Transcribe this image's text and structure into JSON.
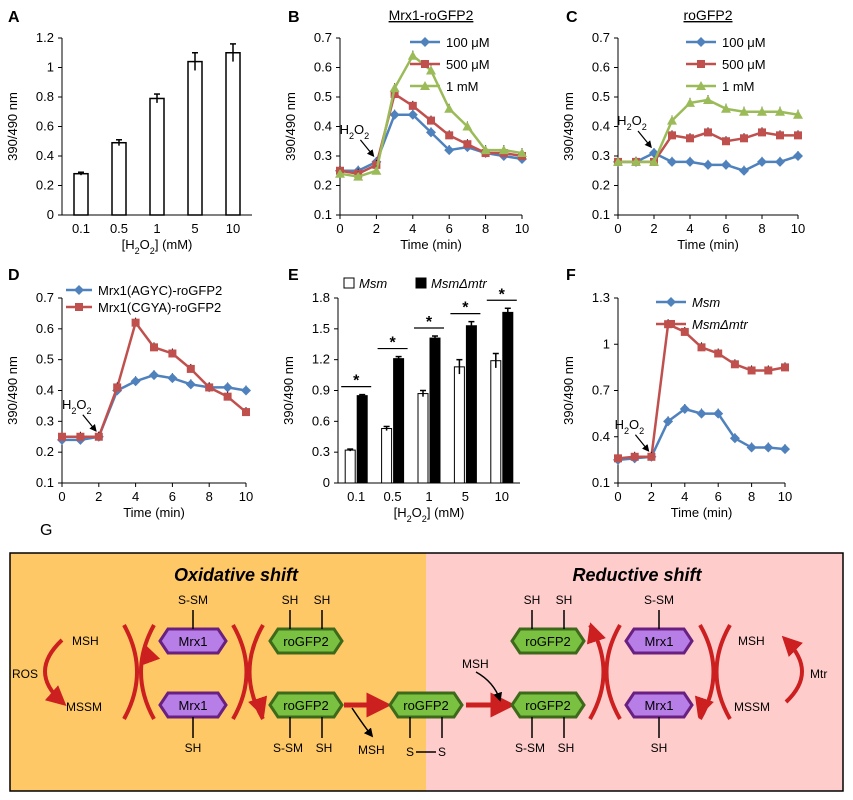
{
  "chart_data": [
    {
      "panel": "A",
      "type": "bar",
      "title": "",
      "xlabel": "[H2O2] (mM)",
      "ylabel": "390/490 nm",
      "categories": [
        "0.1",
        "0.5",
        "1",
        "5",
        "10"
      ],
      "values": [
        0.28,
        0.49,
        0.79,
        1.04,
        1.1
      ],
      "errors": [
        0.01,
        0.02,
        0.03,
        0.06,
        0.06
      ],
      "ylim": [
        0,
        1.2
      ],
      "yticks": [
        "0",
        "0.2",
        "0.4",
        "0.6",
        "0.8",
        "1",
        "1.2"
      ],
      "color": "#ffffff"
    },
    {
      "panel": "B",
      "type": "line",
      "title": "Mrx1-roGFP2",
      "xlabel": "Time (min)",
      "ylabel": "390/490 nm",
      "x": [
        0,
        1,
        2,
        3,
        4,
        5,
        6,
        7,
        8,
        9,
        10
      ],
      "xlim": [
        0,
        10
      ],
      "ylim": [
        0.1,
        0.7
      ],
      "xticks": [
        "0",
        "2",
        "4",
        "6",
        "8",
        "10"
      ],
      "yticks": [
        "0.1",
        "0.2",
        "0.3",
        "0.4",
        "0.5",
        "0.6",
        "0.7"
      ],
      "legend_position": "top-right",
      "annotation": "H2O2",
      "series": [
        {
          "name": "100 μM",
          "color": "#4f81bd",
          "marker": "diamond",
          "values": [
            0.25,
            0.25,
            0.28,
            0.44,
            0.44,
            0.38,
            0.32,
            0.33,
            0.31,
            0.3,
            0.29
          ]
        },
        {
          "name": "500 μM",
          "color": "#c0504d",
          "marker": "square",
          "values": [
            0.25,
            0.24,
            0.27,
            0.51,
            0.47,
            0.42,
            0.37,
            0.34,
            0.31,
            0.31,
            0.3
          ]
        },
        {
          "name": "1 mM",
          "color": "#9bbb59",
          "marker": "triangle",
          "values": [
            0.24,
            0.23,
            0.25,
            0.53,
            0.64,
            0.59,
            0.46,
            0.4,
            0.32,
            0.32,
            0.31
          ]
        }
      ]
    },
    {
      "panel": "C",
      "type": "line",
      "title": "roGFP2",
      "xlabel": "Time (min)",
      "ylabel": "390/490 nm",
      "x": [
        0,
        1,
        2,
        3,
        4,
        5,
        6,
        7,
        8,
        9,
        10
      ],
      "xlim": [
        0,
        10
      ],
      "ylim": [
        0.1,
        0.7
      ],
      "xticks": [
        "0",
        "2",
        "4",
        "6",
        "8",
        "10"
      ],
      "yticks": [
        "0.1",
        "0.2",
        "0.3",
        "0.4",
        "0.5",
        "0.6",
        "0.7"
      ],
      "legend_position": "top-right",
      "annotation": "H2O2",
      "series": [
        {
          "name": "100 μM",
          "color": "#4f81bd",
          "marker": "diamond",
          "values": [
            0.28,
            0.28,
            0.31,
            0.28,
            0.28,
            0.27,
            0.27,
            0.25,
            0.28,
            0.28,
            0.3
          ]
        },
        {
          "name": "500 μM",
          "color": "#c0504d",
          "marker": "square",
          "values": [
            0.28,
            0.28,
            0.28,
            0.37,
            0.36,
            0.38,
            0.35,
            0.36,
            0.38,
            0.37,
            0.37
          ]
        },
        {
          "name": "1 mM",
          "color": "#9bbb59",
          "marker": "triangle",
          "values": [
            0.28,
            0.28,
            0.28,
            0.42,
            0.48,
            0.49,
            0.46,
            0.45,
            0.45,
            0.45,
            0.44
          ]
        }
      ]
    },
    {
      "panel": "D",
      "type": "line",
      "title": "",
      "xlabel": "Time (min)",
      "ylabel": "390/490 nm",
      "x": [
        0,
        1,
        2,
        3,
        4,
        5,
        6,
        7,
        8,
        9,
        10
      ],
      "xlim": [
        0,
        10
      ],
      "ylim": [
        0.1,
        0.7
      ],
      "xticks": [
        "0",
        "2",
        "4",
        "6",
        "8",
        "10"
      ],
      "yticks": [
        "0.1",
        "0.2",
        "0.3",
        "0.4",
        "0.5",
        "0.6",
        "0.7"
      ],
      "legend_position": "top",
      "annotation": "H2O2",
      "series": [
        {
          "name": "Mrx1(AGYC)-roGFP2",
          "color": "#4f81bd",
          "marker": "diamond",
          "values": [
            0.24,
            0.24,
            0.25,
            0.4,
            0.43,
            0.45,
            0.44,
            0.42,
            0.41,
            0.41,
            0.4
          ]
        },
        {
          "name": "Mrx1(CGYA)-roGFP2",
          "color": "#c0504d",
          "marker": "square",
          "values": [
            0.25,
            0.25,
            0.25,
            0.41,
            0.62,
            0.54,
            0.52,
            0.47,
            0.41,
            0.38,
            0.33
          ]
        }
      ]
    },
    {
      "panel": "E",
      "type": "bar",
      "title": "",
      "xlabel": "[H2O2] (mM)",
      "ylabel": "390/490 nm",
      "categories": [
        "0.1",
        "0.5",
        "1",
        "5",
        "10"
      ],
      "ylim": [
        0,
        1.8
      ],
      "yticks": [
        "0",
        "0.3",
        "0.6",
        "0.9",
        "1.2",
        "1.5",
        "1.8"
      ],
      "legend_position": "top",
      "significance": "*",
      "series": [
        {
          "name": "Msm",
          "color": "#ffffff",
          "values": [
            0.32,
            0.53,
            0.87,
            1.13,
            1.19
          ],
          "errors": [
            0.01,
            0.02,
            0.03,
            0.07,
            0.07
          ]
        },
        {
          "name": "MsmΔmtr",
          "color": "#000000",
          "values": [
            0.85,
            1.21,
            1.41,
            1.53,
            1.66
          ],
          "errors": [
            0.01,
            0.02,
            0.02,
            0.04,
            0.04
          ]
        }
      ]
    },
    {
      "panel": "F",
      "type": "line",
      "title": "",
      "xlabel": "Time (min)",
      "ylabel": "390/490 nm",
      "x": [
        0,
        1,
        2,
        3,
        4,
        5,
        6,
        7,
        8,
        9,
        10
      ],
      "xlim": [
        0,
        10
      ],
      "ylim": [
        0.1,
        1.3
      ],
      "xticks": [
        "0",
        "2",
        "4",
        "6",
        "8",
        "10"
      ],
      "yticks": [
        "0.1",
        "0.4",
        "0.7",
        "1",
        "1.3"
      ],
      "legend_position": "top-right",
      "annotation": "H2O2",
      "series": [
        {
          "name": "Msm",
          "color": "#4f81bd",
          "marker": "diamond",
          "values": [
            0.25,
            0.26,
            0.27,
            0.5,
            0.58,
            0.55,
            0.55,
            0.39,
            0.33,
            0.33,
            0.32
          ]
        },
        {
          "name": "MsmΔmtr",
          "color": "#c0504d",
          "marker": "square",
          "values": [
            0.26,
            0.27,
            0.27,
            1.13,
            1.08,
            0.98,
            0.94,
            0.87,
            0.83,
            0.83,
            0.85
          ]
        }
      ]
    }
  ],
  "panels": {
    "a": "A",
    "b": "B",
    "c": "C",
    "d": "D",
    "e": "E",
    "f": "F",
    "g": "G"
  },
  "diagram": {
    "left_title": "Oxidative shift",
    "right_title": "Reductive shift",
    "left_bg": "#ffc866",
    "right_bg": "#ffcccc",
    "mrx1": "Mrx1",
    "rogfp2": "roGFP2",
    "msh": "MSH",
    "mssm": "MSSM",
    "ros": "ROS",
    "mtr": "Mtr",
    "s_sm": "S-SM",
    "sh": "SH",
    "s": "S"
  }
}
